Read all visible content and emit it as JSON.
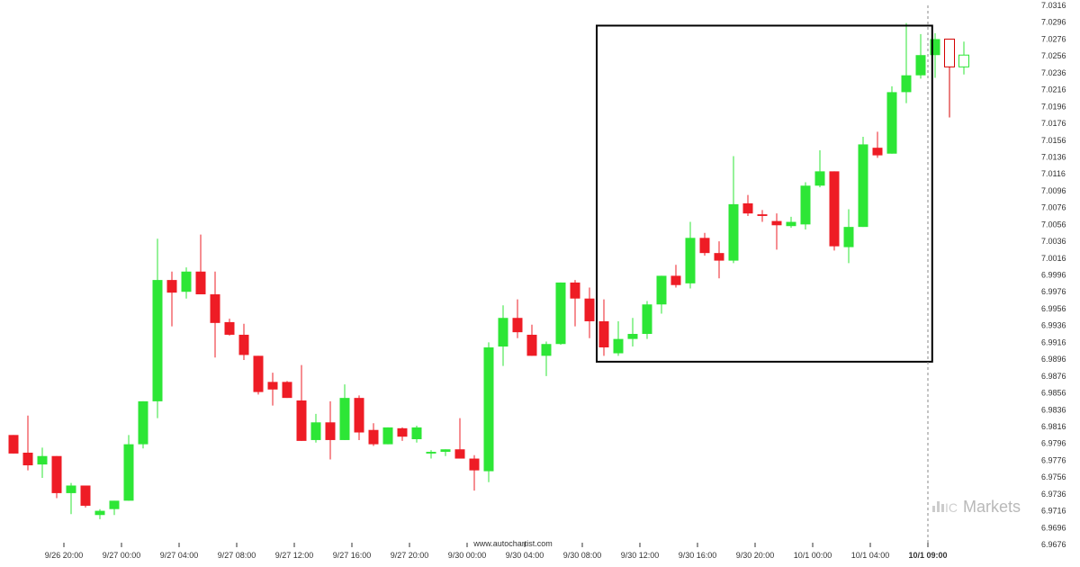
{
  "chart_data": {
    "type": "candlestick",
    "title": "",
    "y_ticks": [
      "7.0316",
      "7.0296",
      "7.0276",
      "7.0256",
      "7.0236",
      "7.0216",
      "7.0196",
      "7.0176",
      "7.0156",
      "7.0136",
      "7.0116",
      "7.0096",
      "7.0076",
      "7.0056",
      "7.0036",
      "7.0016",
      "6.9996",
      "6.9976",
      "6.9956",
      "6.9936",
      "6.9916",
      "6.9896",
      "6.9876",
      "6.9856",
      "6.9836",
      "6.9816",
      "6.9796",
      "6.9776",
      "6.9756",
      "6.9736",
      "6.9716",
      "6.9696",
      "6.9676"
    ],
    "ylim": [
      6.9676,
      7.0316
    ],
    "x_ticks": [
      {
        "label": "9/26 20:00",
        "bar": 3.5
      },
      {
        "label": "9/27 00:00",
        "bar": 7.5
      },
      {
        "label": "9/27 04:00",
        "bar": 11.5
      },
      {
        "label": "9/27 08:00",
        "bar": 15.5
      },
      {
        "label": "9/27 12:00",
        "bar": 19.5
      },
      {
        "label": "9/27 16:00",
        "bar": 23.5
      },
      {
        "label": "9/27 20:00",
        "bar": 27.5
      },
      {
        "label": "9/30 00:00",
        "bar": 31.5
      },
      {
        "label": "9/30 04:00",
        "bar": 35.5
      },
      {
        "label": "9/30 08:00",
        "bar": 39.5
      },
      {
        "label": "9/30 12:00",
        "bar": 43.5
      },
      {
        "label": "9/30 16:00",
        "bar": 47.5
      },
      {
        "label": "9/30 20:00",
        "bar": 51.5
      },
      {
        "label": "10/1 00:00",
        "bar": 55.5
      },
      {
        "label": "10/1 04:00",
        "bar": 59.5
      },
      {
        "label": "10/1 09:00",
        "bar": 63.5,
        "bold": true
      }
    ],
    "candles": [
      {
        "o": 6.9806,
        "h": 6.9806,
        "l": 6.9784,
        "c": 6.9784
      },
      {
        "o": 6.9785,
        "h": 6.9829,
        "l": 6.9764,
        "c": 6.977
      },
      {
        "o": 6.9771,
        "h": 6.9791,
        "l": 6.9755,
        "c": 6.9781
      },
      {
        "o": 6.9781,
        "h": 6.9781,
        "l": 6.9731,
        "c": 6.9737
      },
      {
        "o": 6.9737,
        "h": 6.9749,
        "l": 6.9712,
        "c": 6.9746
      },
      {
        "o": 6.9746,
        "h": 6.9746,
        "l": 6.972,
        "c": 6.9722
      },
      {
        "o": 6.9711,
        "h": 6.9718,
        "l": 6.9706,
        "c": 6.9716
      },
      {
        "o": 6.9718,
        "h": 6.9728,
        "l": 6.9711,
        "c": 6.9728
      },
      {
        "o": 6.9728,
        "h": 6.9806,
        "l": 6.9728,
        "c": 6.9795
      },
      {
        "o": 6.9795,
        "h": 6.9846,
        "l": 6.979,
        "c": 6.9846
      },
      {
        "o": 6.9846,
        "h": 7.0039,
        "l": 6.9826,
        "c": 6.999
      },
      {
        "o": 6.999,
        "h": 7.0,
        "l": 6.9935,
        "c": 6.9975
      },
      {
        "o": 6.9976,
        "h": 7.0005,
        "l": 6.9968,
        "c": 7.0
      },
      {
        "o": 7.0,
        "h": 7.0044,
        "l": 6.9973,
        "c": 6.9973
      },
      {
        "o": 6.9973,
        "h": 7.0,
        "l": 6.9898,
        "c": 6.9939
      },
      {
        "o": 6.994,
        "h": 6.9944,
        "l": 6.9924,
        "c": 6.9925
      },
      {
        "o": 6.9925,
        "h": 6.9938,
        "l": 6.9895,
        "c": 6.9901
      },
      {
        "o": 6.99,
        "h": 6.99,
        "l": 6.9854,
        "c": 6.9857
      },
      {
        "o": 6.9869,
        "h": 6.988,
        "l": 6.9841,
        "c": 6.986
      },
      {
        "o": 6.9869,
        "h": 6.987,
        "l": 6.985,
        "c": 6.985
      },
      {
        "o": 6.9847,
        "h": 6.9889,
        "l": 6.9799,
        "c": 6.9799
      },
      {
        "o": 6.98,
        "h": 6.9831,
        "l": 6.9797,
        "c": 6.9821
      },
      {
        "o": 6.9821,
        "h": 6.9846,
        "l": 6.9777,
        "c": 6.98
      },
      {
        "o": 6.98,
        "h": 6.9866,
        "l": 6.98,
        "c": 6.985
      },
      {
        "o": 6.985,
        "h": 6.9853,
        "l": 6.98,
        "c": 6.9809
      },
      {
        "o": 6.9812,
        "h": 6.982,
        "l": 6.9793,
        "c": 6.9795
      },
      {
        "o": 6.9795,
        "h": 6.9815,
        "l": 6.9795,
        "c": 6.9815
      },
      {
        "o": 6.9814,
        "h": 6.9815,
        "l": 6.9799,
        "c": 6.9804
      },
      {
        "o": 6.9801,
        "h": 6.9817,
        "l": 6.9797,
        "c": 6.9815
      },
      {
        "o": 6.9784,
        "h": 6.9788,
        "l": 6.9778,
        "c": 6.9786
      },
      {
        "o": 6.9786,
        "h": 6.9789,
        "l": 6.9781,
        "c": 6.9789
      },
      {
        "o": 6.9789,
        "h": 6.9826,
        "l": 6.9778,
        "c": 6.9778
      },
      {
        "o": 6.9778,
        "h": 6.9782,
        "l": 6.974,
        "c": 6.9764
      },
      {
        "o": 6.9763,
        "h": 6.9916,
        "l": 6.975,
        "c": 6.991
      },
      {
        "o": 6.9911,
        "h": 6.996,
        "l": 6.9888,
        "c": 6.9945
      },
      {
        "o": 6.9945,
        "h": 6.9967,
        "l": 6.9921,
        "c": 6.9928
      },
      {
        "o": 6.9925,
        "h": 6.9937,
        "l": 6.99,
        "c": 6.99
      },
      {
        "o": 6.99,
        "h": 6.9917,
        "l": 6.9876,
        "c": 6.9914
      },
      {
        "o": 6.9914,
        "h": 6.9987,
        "l": 6.9913,
        "c": 6.9987
      },
      {
        "o": 6.9987,
        "h": 6.999,
        "l": 6.9935,
        "c": 6.9968
      },
      {
        "o": 6.9968,
        "h": 6.9981,
        "l": 6.9921,
        "c": 6.9941
      },
      {
        "o": 6.9941,
        "h": 6.9967,
        "l": 6.99,
        "c": 6.991
      },
      {
        "o": 6.9903,
        "h": 6.9941,
        "l": 6.99,
        "c": 6.992
      },
      {
        "o": 6.992,
        "h": 6.9945,
        "l": 6.9911,
        "c": 6.9926
      },
      {
        "o": 6.9926,
        "h": 6.9965,
        "l": 6.992,
        "c": 6.9961
      },
      {
        "o": 6.9961,
        "h": 6.9995,
        "l": 6.995,
        "c": 6.9995
      },
      {
        "o": 6.9995,
        "h": 7.0008,
        "l": 6.9981,
        "c": 6.9984
      },
      {
        "o": 6.9986,
        "h": 7.0059,
        "l": 6.998,
        "c": 7.004
      },
      {
        "o": 7.004,
        "h": 7.0046,
        "l": 7.0019,
        "c": 7.0022
      },
      {
        "o": 7.0022,
        "h": 7.0036,
        "l": 6.9992,
        "c": 7.0013
      },
      {
        "o": 7.0013,
        "h": 7.0137,
        "l": 7.001,
        "c": 7.008
      },
      {
        "o": 7.0081,
        "h": 7.0091,
        "l": 7.0066,
        "c": 7.0069
      },
      {
        "o": 7.0068,
        "h": 7.0073,
        "l": 7.0059,
        "c": 7.0066
      },
      {
        "o": 7.006,
        "h": 7.0069,
        "l": 7.0026,
        "c": 7.0055
      },
      {
        "o": 7.0054,
        "h": 7.0065,
        "l": 7.0052,
        "c": 7.0059
      },
      {
        "o": 7.0056,
        "h": 7.0106,
        "l": 7.005,
        "c": 7.0102
      },
      {
        "o": 7.0102,
        "h": 7.0144,
        "l": 7.01,
        "c": 7.0119
      },
      {
        "o": 7.0119,
        "h": 7.0119,
        "l": 7.0025,
        "c": 7.003
      },
      {
        "o": 7.0029,
        "h": 7.0074,
        "l": 7.001,
        "c": 7.0053
      },
      {
        "o": 7.0053,
        "h": 7.016,
        "l": 7.0053,
        "c": 7.0151
      },
      {
        "o": 7.0147,
        "h": 7.0166,
        "l": 7.0135,
        "c": 7.0138
      },
      {
        "o": 7.014,
        "h": 7.022,
        "l": 7.014,
        "c": 7.0213
      },
      {
        "o": 7.0213,
        "h": 7.0295,
        "l": 7.02,
        "c": 7.0233
      },
      {
        "o": 7.0233,
        "h": 7.0282,
        "l": 7.0229,
        "c": 7.0257
      },
      {
        "o": 7.0257,
        "h": 7.0283,
        "l": 7.023,
        "c": 7.0276
      },
      {
        "o": 7.0276,
        "h": 7.0276,
        "l": 7.0183,
        "c": 7.0243,
        "hollow": true
      },
      {
        "o": 7.0243,
        "h": 7.0273,
        "l": 7.0234,
        "c": 7.0257,
        "hollow": true
      }
    ],
    "pattern_box": {
      "from_bar": 40.5,
      "to_bar": 63.8,
      "top": 7.0292,
      "bottom": 6.9893
    },
    "current_bar": 63.5,
    "colors": {
      "up": "#2de636",
      "down": "#ee1c25",
      "up_hollow_stroke": "#2de636",
      "down_hollow_stroke": "#d40000",
      "box": "#000000",
      "axis_text": "#333333",
      "current_line": "#888888"
    }
  },
  "footer": {
    "credit": "www.autochartist.com"
  },
  "watermark": {
    "brand": "Markets",
    "mark": "IC"
  }
}
